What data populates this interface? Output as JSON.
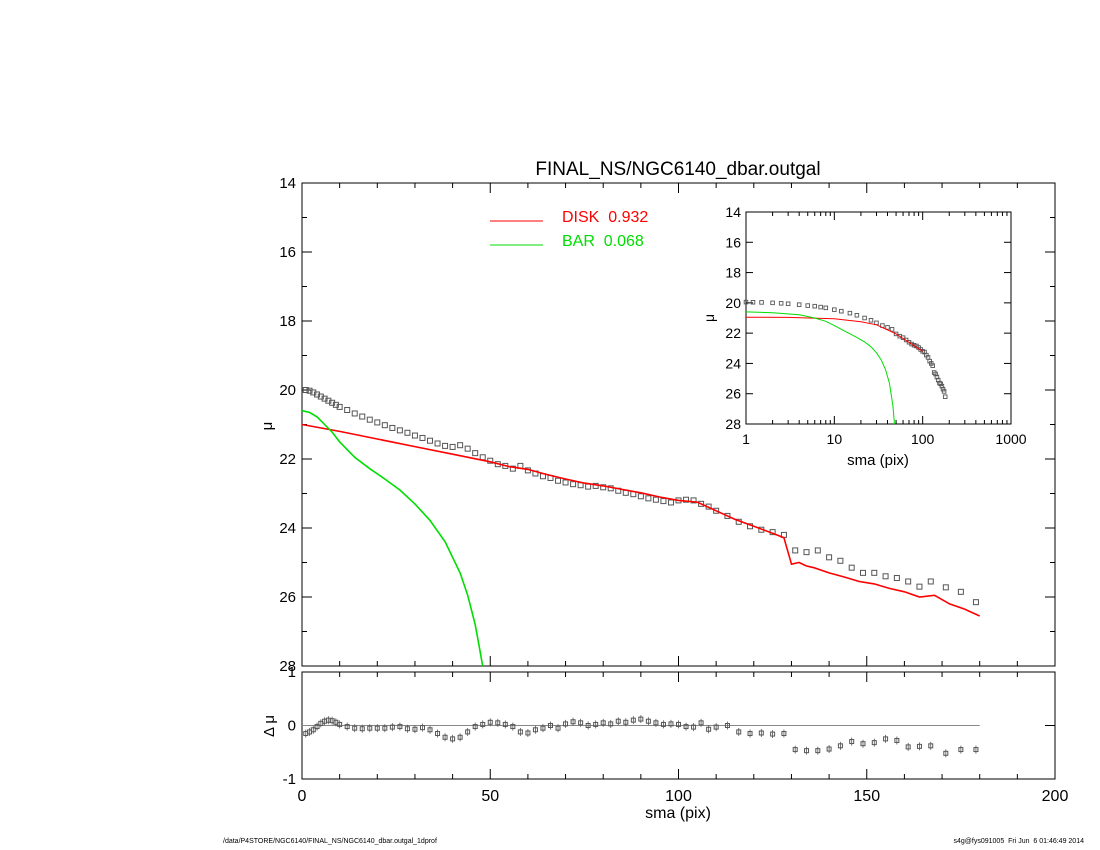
{
  "chart_data": [
    {
      "panel": "main",
      "type": "line",
      "title": "FINAL_NS/NGC6140_dbar.outgal",
      "ylabel": "μ",
      "xlabel": "",
      "xlim": [
        0,
        200
      ],
      "ylim": [
        28,
        14
      ],
      "y_reversed": true,
      "yticks": [
        14,
        16,
        18,
        20,
        22,
        24,
        26,
        28
      ],
      "legend": {
        "position": "top-center",
        "entries": [
          {
            "label": "DISK  0.932",
            "color": "#ff0000"
          },
          {
            "label": "BAR  0.068",
            "color": "#00dd00"
          }
        ]
      },
      "series": [
        {
          "kind": "observed-points",
          "marker": "open-square",
          "color": "#555555",
          "x": [
            1,
            2,
            3,
            4,
            5,
            6,
            7,
            8,
            9,
            10,
            12,
            14,
            16,
            18,
            20,
            22,
            24,
            26,
            28,
            30,
            32,
            34,
            36,
            38,
            40,
            42,
            44,
            46,
            48,
            50,
            52,
            54,
            56,
            58,
            60,
            62,
            64,
            66,
            68,
            70,
            72,
            74,
            76,
            78,
            80,
            82,
            84,
            86,
            88,
            90,
            92,
            94,
            96,
            98,
            100,
            102,
            104,
            106,
            108,
            110,
            113,
            116,
            119,
            122,
            125,
            128,
            131,
            134,
            137,
            140,
            143,
            146,
            149,
            152,
            155,
            158,
            161,
            164,
            167,
            171,
            175,
            179
          ],
          "y": [
            20.0,
            20.02,
            20.07,
            20.13,
            20.19,
            20.25,
            20.31,
            20.37,
            20.43,
            20.49,
            20.58,
            20.68,
            20.77,
            20.86,
            20.94,
            21.02,
            21.1,
            21.17,
            21.24,
            21.32,
            21.39,
            21.47,
            21.55,
            21.62,
            21.65,
            21.6,
            21.7,
            21.83,
            21.95,
            22.05,
            22.15,
            22.2,
            22.28,
            22.2,
            22.33,
            22.42,
            22.5,
            22.55,
            22.63,
            22.68,
            22.73,
            22.76,
            22.8,
            22.78,
            22.82,
            22.85,
            22.92,
            22.98,
            23.02,
            23.08,
            23.14,
            23.18,
            23.22,
            23.26,
            23.2,
            23.18,
            23.2,
            23.3,
            23.38,
            23.5,
            23.65,
            23.82,
            23.95,
            24.05,
            24.12,
            24.2,
            24.65,
            24.7,
            24.65,
            24.85,
            24.95,
            25.15,
            25.3,
            25.3,
            25.4,
            25.45,
            25.55,
            25.7,
            25.55,
            25.72,
            25.85,
            26.15
          ]
        },
        {
          "name": "DISK",
          "kind": "model-line",
          "color": "#ff0000",
          "x": [
            0,
            10,
            20,
            30,
            40,
            50,
            55,
            60,
            65,
            70,
            75,
            80,
            85,
            90,
            95,
            100,
            105,
            110,
            115,
            120,
            125,
            128,
            130,
            132,
            134,
            136,
            140,
            144,
            148,
            152,
            156,
            160,
            164,
            168,
            172,
            176,
            180
          ],
          "y": [
            21.0,
            21.2,
            21.42,
            21.64,
            21.86,
            22.08,
            22.22,
            22.3,
            22.45,
            22.58,
            22.7,
            22.78,
            22.88,
            22.98,
            23.1,
            23.2,
            23.25,
            23.5,
            23.75,
            23.95,
            24.15,
            24.28,
            25.05,
            25.0,
            25.1,
            25.15,
            25.3,
            25.42,
            25.55,
            25.62,
            25.75,
            25.85,
            26.0,
            25.95,
            26.2,
            26.35,
            26.55
          ]
        },
        {
          "name": "BAR",
          "kind": "model-line",
          "color": "#00dd00",
          "x": [
            0,
            2,
            4,
            6,
            8,
            10,
            14,
            18,
            22,
            26,
            30,
            34,
            38,
            42,
            44,
            46,
            47,
            48
          ],
          "y": [
            20.6,
            20.65,
            20.78,
            21.0,
            21.22,
            21.5,
            21.95,
            22.28,
            22.58,
            22.9,
            23.3,
            23.78,
            24.4,
            25.3,
            25.95,
            26.8,
            27.4,
            28.0
          ]
        }
      ]
    },
    {
      "panel": "residual",
      "type": "scatter",
      "ylabel": "Δ μ",
      "xlabel": "sma (pix)",
      "xlim": [
        0,
        200
      ],
      "ylim": [
        -1,
        1
      ],
      "yticks": [
        -1,
        0,
        1
      ],
      "xticks": [
        0,
        50,
        100,
        150,
        200
      ],
      "zero_line": {
        "x": [
          0,
          180
        ],
        "y": 0
      },
      "series": [
        {
          "kind": "residual-points",
          "marker": "open-square",
          "color": "#555555",
          "x": [
            1,
            2,
            3,
            4,
            5,
            6,
            7,
            8,
            9,
            10,
            12,
            14,
            16,
            18,
            20,
            22,
            24,
            26,
            28,
            30,
            32,
            34,
            36,
            38,
            40,
            42,
            44,
            46,
            48,
            50,
            52,
            54,
            56,
            58,
            60,
            62,
            64,
            66,
            68,
            70,
            72,
            74,
            76,
            78,
            80,
            82,
            84,
            86,
            88,
            90,
            92,
            94,
            96,
            98,
            100,
            102,
            104,
            106,
            108,
            110,
            113,
            116,
            119,
            122,
            125,
            128,
            131,
            134,
            137,
            140,
            143,
            146,
            149,
            152,
            155,
            158,
            161,
            164,
            167,
            171,
            175,
            179
          ],
          "y": [
            -0.15,
            -0.12,
            -0.08,
            -0.02,
            0.04,
            0.08,
            0.1,
            0.09,
            0.06,
            0.02,
            -0.02,
            -0.05,
            -0.06,
            -0.05,
            -0.05,
            -0.05,
            -0.03,
            -0.02,
            -0.06,
            -0.07,
            -0.04,
            -0.08,
            -0.15,
            -0.22,
            -0.25,
            -0.22,
            -0.12,
            -0.02,
            0.02,
            0.06,
            0.05,
            0.02,
            -0.02,
            -0.12,
            -0.14,
            -0.08,
            -0.05,
            0.0,
            -0.05,
            0.03,
            0.07,
            0.05,
            0.0,
            0.02,
            0.05,
            0.03,
            0.08,
            0.06,
            0.1,
            0.12,
            0.08,
            0.05,
            0.02,
            0.03,
            0.02,
            -0.02,
            -0.03,
            0.05,
            -0.07,
            -0.03,
            0.0,
            -0.12,
            -0.15,
            -0.14,
            -0.16,
            -0.15,
            -0.45,
            -0.47,
            -0.47,
            -0.44,
            -0.38,
            -0.3,
            -0.34,
            -0.32,
            -0.25,
            -0.28,
            -0.4,
            -0.39,
            -0.38,
            -0.52,
            -0.45,
            -0.45
          ]
        }
      ]
    },
    {
      "panel": "inset",
      "type": "line",
      "xscale": "log",
      "xlabel": "sma (pix)",
      "ylabel": "μ",
      "xlim": [
        1,
        1000
      ],
      "ylim": [
        28,
        14
      ],
      "y_reversed": true,
      "xticks": [
        1,
        10,
        100,
        1000
      ],
      "yticks": [
        14,
        16,
        18,
        20,
        22,
        24,
        26,
        28
      ],
      "series": [
        {
          "kind": "observed-points",
          "marker": "open-square",
          "color": "#555555",
          "x": [
            1,
            1.2,
            1.5,
            2,
            2.5,
            3,
            4,
            5,
            6,
            7,
            8,
            10,
            12,
            15,
            18,
            22,
            26,
            30,
            35,
            40,
            45,
            50,
            55,
            60,
            65,
            70,
            75,
            80,
            85,
            90,
            95,
            100,
            105,
            110,
            115,
            120,
            125,
            130,
            135,
            140,
            145,
            150,
            155,
            160,
            165,
            170,
            175,
            180
          ],
          "y": [
            19.95,
            19.96,
            19.97,
            20.0,
            20.03,
            20.06,
            20.12,
            20.18,
            20.22,
            20.28,
            20.33,
            20.45,
            20.55,
            20.68,
            20.82,
            21.0,
            21.15,
            21.32,
            21.5,
            21.62,
            21.75,
            22.05,
            22.2,
            22.3,
            22.45,
            22.6,
            22.72,
            22.8,
            22.85,
            22.95,
            23.08,
            23.2,
            23.25,
            23.45,
            23.6,
            23.85,
            24.0,
            24.15,
            24.6,
            24.7,
            24.9,
            25.1,
            25.3,
            25.35,
            25.5,
            25.7,
            25.85,
            26.2
          ]
        },
        {
          "name": "DISK",
          "kind": "model-line",
          "color": "#ff0000",
          "x": [
            1,
            3,
            10,
            20,
            30,
            50,
            100
          ],
          "y": [
            20.95,
            20.96,
            21.05,
            21.25,
            21.45,
            22.05,
            23.2
          ]
        },
        {
          "name": "BAR",
          "kind": "model-line",
          "color": "#00dd00",
          "x": [
            1,
            2,
            4,
            6,
            8,
            10,
            14,
            18,
            22,
            26,
            30,
            34,
            38,
            42,
            46,
            48
          ],
          "y": [
            20.6,
            20.65,
            20.78,
            21.0,
            21.22,
            21.5,
            21.95,
            22.28,
            22.58,
            22.9,
            23.3,
            23.78,
            24.4,
            25.3,
            26.8,
            28.0
          ]
        }
      ]
    }
  ],
  "footer": {
    "left": "/data/P4STORE/NGC6140/FINAL_NS/NGC6140_dbar.outgal_1dprof",
    "right": "s4g@fys091005  Fri Jun  6 01:46:49 2014"
  }
}
